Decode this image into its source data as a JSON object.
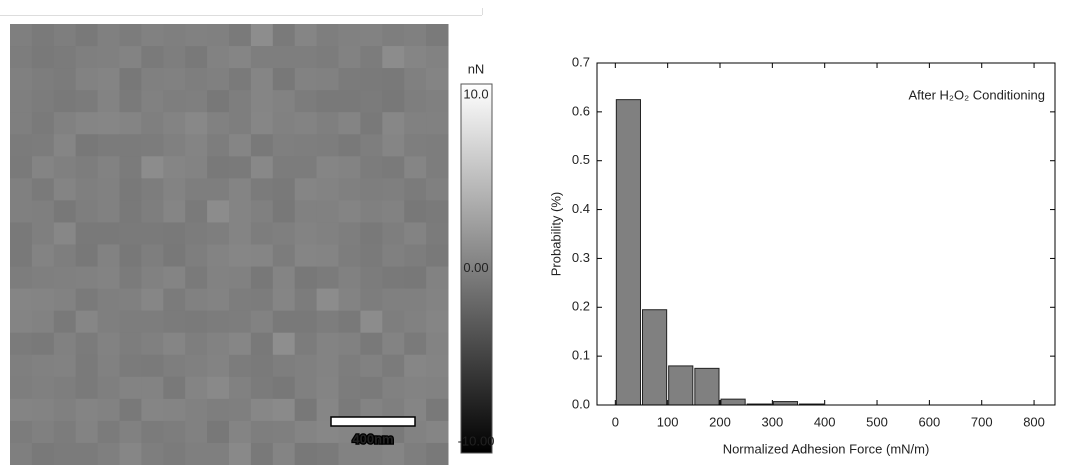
{
  "image": {
    "scale_bar": "400nm"
  },
  "colorbar": {
    "unit": "nN",
    "lim": [
      -10,
      10
    ],
    "ticks": [
      {
        "value": 10,
        "label": "10.0"
      },
      {
        "value": 0,
        "label": "0.00"
      },
      {
        "value": -10,
        "label": "-10.00"
      }
    ]
  },
  "chart_data": {
    "type": "histogram",
    "annotation": "After H₂O₂ Conditioning",
    "x_label": "Normalized Adhesion Force (mN/m)",
    "y_label": "Probability (%)",
    "bins": [
      0,
      50,
      100,
      150,
      200,
      250,
      300,
      350,
      400
    ],
    "counts": [
      0.625,
      0.195,
      0.08,
      0.075,
      0.012,
      0.002,
      0.007,
      0.002
    ],
    "color": "#808080",
    "xlim": [
      -35,
      840
    ],
    "ylim": [
      0,
      0.7
    ],
    "xticks": [
      0,
      100,
      200,
      300,
      400,
      500,
      600,
      700,
      800
    ],
    "yticks": [
      {
        "value": 0,
        "label": "0.0"
      },
      0.1,
      0.2,
      0.3,
      0.4,
      0.5,
      0.6,
      0.7
    ]
  }
}
